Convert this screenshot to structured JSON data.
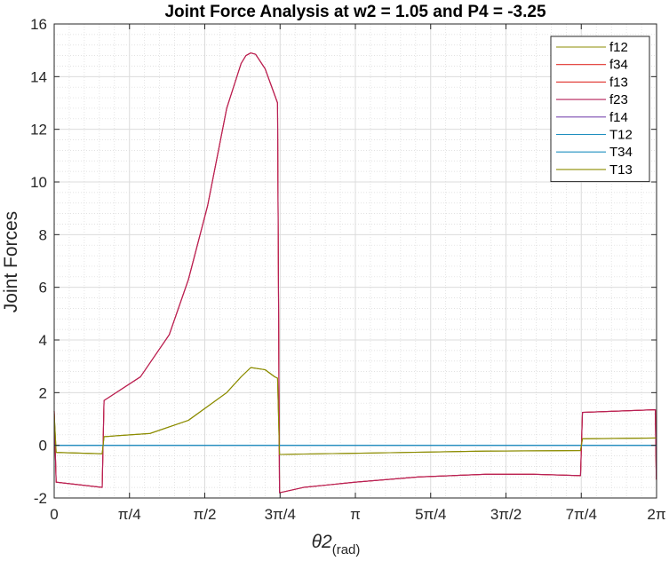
{
  "chart_data": {
    "type": "line",
    "title": "Joint Force Analysis at w2 = 1.05 and P4 = -3.25",
    "xlabel": "θ2",
    "xlabel_sub": "(rad)",
    "ylabel": "Joint Forces",
    "xlim": [
      0,
      6.2832
    ],
    "ylim": [
      -2,
      16
    ],
    "xticks": [
      {
        "value": 0,
        "label": "0"
      },
      {
        "value": 0.7854,
        "label": "π/4"
      },
      {
        "value": 1.5708,
        "label": "π/2"
      },
      {
        "value": 2.3562,
        "label": "3π/4"
      },
      {
        "value": 3.1416,
        "label": "π"
      },
      {
        "value": 3.927,
        "label": "5π/4"
      },
      {
        "value": 4.7124,
        "label": "3π/2"
      },
      {
        "value": 5.4978,
        "label": "7π/4"
      },
      {
        "value": 6.2832,
        "label": "2π"
      }
    ],
    "yticks": [
      -2,
      0,
      2,
      4,
      6,
      8,
      10,
      12,
      14,
      16
    ],
    "grid": true,
    "minor_grid": true,
    "legend_position": "top-right",
    "series": [
      {
        "name": "f12",
        "color": "#8C8C00",
        "x": [
          0,
          0.02,
          0.5,
          0.52,
          1.0,
          1.4,
          1.8,
          1.95,
          2.05,
          2.2,
          2.3,
          2.33,
          2.35,
          2.6,
          3.5,
          4.5,
          5.49,
          5.51,
          6.28
        ],
        "y": [
          1.2,
          -0.27,
          -0.32,
          0.33,
          0.45,
          0.95,
          2.0,
          2.6,
          2.95,
          2.87,
          2.6,
          2.55,
          -0.35,
          -0.33,
          -0.28,
          -0.22,
          -0.2,
          0.25,
          0.28
        ]
      },
      {
        "name": "f34",
        "color": "#E0302A",
        "x": [
          0,
          0.02,
          0.5,
          0.52,
          0.9,
          1.2,
          1.4,
          1.6,
          1.8,
          1.95,
          2.0,
          2.05,
          2.1,
          2.2,
          2.33,
          2.35,
          2.6,
          3.14,
          3.8,
          4.5,
          5.0,
          5.49,
          5.51,
          6.27,
          6.28
        ],
        "y": [
          1.3,
          -1.4,
          -1.6,
          1.7,
          2.6,
          4.2,
          6.3,
          9.1,
          12.8,
          14.5,
          14.8,
          14.9,
          14.85,
          14.3,
          13.0,
          -1.8,
          -1.6,
          -1.4,
          -1.2,
          -1.1,
          -1.1,
          -1.15,
          1.25,
          1.35,
          -1.3
        ]
      },
      {
        "name": "f13",
        "color": "#E0302A",
        "x": [
          0,
          0.02,
          0.5,
          0.52,
          0.9,
          1.2,
          1.4,
          1.6,
          1.8,
          1.95,
          2.0,
          2.05,
          2.1,
          2.2,
          2.33,
          2.35,
          2.6,
          3.14,
          3.8,
          4.5,
          5.0,
          5.49,
          5.51,
          6.27,
          6.28
        ],
        "y": [
          1.3,
          -1.4,
          -1.6,
          1.7,
          2.6,
          4.2,
          6.3,
          9.1,
          12.8,
          14.5,
          14.8,
          14.9,
          14.85,
          14.3,
          13.0,
          -1.8,
          -1.6,
          -1.4,
          -1.2,
          -1.1,
          -1.1,
          -1.15,
          1.25,
          1.35,
          -1.3
        ]
      },
      {
        "name": "f23",
        "color": "#B5205A",
        "x": [
          0,
          0.02,
          0.5,
          0.52,
          0.9,
          1.2,
          1.4,
          1.6,
          1.8,
          1.95,
          2.0,
          2.05,
          2.1,
          2.2,
          2.33,
          2.35,
          2.6,
          3.14,
          3.8,
          4.5,
          5.0,
          5.49,
          5.51,
          6.27,
          6.28
        ],
        "y": [
          1.3,
          -1.4,
          -1.6,
          1.7,
          2.6,
          4.2,
          6.3,
          9.1,
          12.8,
          14.5,
          14.8,
          14.9,
          14.85,
          14.3,
          13.0,
          -1.8,
          -1.6,
          -1.4,
          -1.2,
          -1.1,
          -1.1,
          -1.15,
          1.25,
          1.35,
          -1.3
        ]
      },
      {
        "name": "f14",
        "color": "#7B4BB0",
        "x": [
          0,
          6.2832
        ],
        "y": [
          0,
          0
        ]
      },
      {
        "name": "T12",
        "color": "#1F8FBF",
        "x": [
          0,
          6.2832
        ],
        "y": [
          0,
          0
        ]
      },
      {
        "name": "T34",
        "color": "#1F8FBF",
        "x": [
          0,
          6.2832
        ],
        "y": [
          0,
          0
        ]
      },
      {
        "name": "T13",
        "color": "#8C8C00",
        "x": [
          0,
          0.02,
          0.5,
          0.52,
          1.0,
          1.4,
          1.8,
          1.95,
          2.05,
          2.2,
          2.3,
          2.33,
          2.35,
          2.6,
          3.5,
          4.5,
          5.49,
          5.51,
          6.28
        ],
        "y": [
          1.2,
          -0.27,
          -0.32,
          0.33,
          0.45,
          0.95,
          2.0,
          2.6,
          2.95,
          2.87,
          2.6,
          2.55,
          -0.35,
          -0.33,
          -0.28,
          -0.22,
          -0.2,
          0.25,
          0.28
        ]
      }
    ]
  }
}
